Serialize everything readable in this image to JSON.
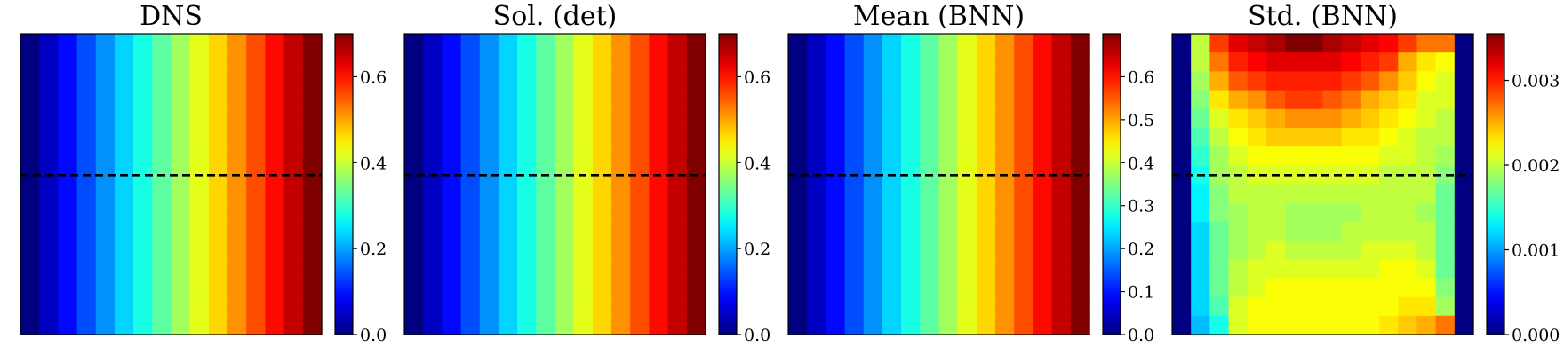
{
  "chart_data": [
    {
      "type": "heatmap",
      "title": "DNS",
      "colormap": "jet",
      "grid": false,
      "colorbar": {
        "range": [
          0.0,
          0.7
        ],
        "ticks": [
          0.0,
          0.2,
          0.4,
          0.6
        ],
        "tick_labels": [
          "0.0",
          "0.2",
          "0.4",
          "0.6"
        ]
      },
      "reference_line": {
        "axis": "y",
        "value": 0.53,
        "style": "dashed",
        "color": "#000000"
      },
      "pattern": {
        "kind": "linear_x",
        "cols": 16,
        "rows": 16,
        "start": 0.0,
        "end": 0.7
      }
    },
    {
      "type": "heatmap",
      "title": "Sol. (det)",
      "colormap": "jet",
      "grid": false,
      "colorbar": {
        "range": [
          0.0,
          0.7
        ],
        "ticks": [
          0.0,
          0.2,
          0.4,
          0.6
        ],
        "tick_labels": [
          "0.0",
          "0.2",
          "0.4",
          "0.6"
        ]
      },
      "reference_line": {
        "axis": "y",
        "value": 0.53,
        "style": "dashed",
        "color": "#000000"
      },
      "pattern": {
        "kind": "linear_x",
        "cols": 16,
        "rows": 16,
        "start": 0.0,
        "end": 0.7
      }
    },
    {
      "type": "heatmap",
      "title": "Mean (BNN)",
      "colormap": "jet",
      "grid": false,
      "colorbar": {
        "range": [
          0.0,
          0.7
        ],
        "ticks": [
          0.0,
          0.1,
          0.2,
          0.3,
          0.4,
          0.5,
          0.6
        ],
        "tick_labels": [
          "0.0",
          "0.1",
          "0.2",
          "0.3",
          "0.4",
          "0.5",
          "0.6"
        ]
      },
      "reference_line": {
        "axis": "y",
        "value": 0.53,
        "style": "dashed",
        "color": "#000000"
      },
      "pattern": {
        "kind": "linear_x",
        "cols": 16,
        "rows": 16,
        "start": 0.0,
        "end": 0.7
      }
    },
    {
      "type": "heatmap",
      "title": "Std. (BNN)",
      "colormap": "jet",
      "grid": false,
      "colorbar": {
        "range": [
          0.0,
          0.00355
        ],
        "ticks": [
          0.0,
          0.001,
          0.002,
          0.003
        ],
        "tick_labels": [
          "0.000",
          "0.001",
          "0.002",
          "0.003"
        ]
      },
      "reference_line": {
        "axis": "y",
        "value": 0.53,
        "style": "dashed",
        "color": "#000000"
      },
      "row_order": "top_to_bottom",
      "values": [
        [
          0.0,
          0.002,
          0.0029,
          0.0032,
          0.0033,
          0.0034,
          0.00355,
          0.00355,
          0.0034,
          0.0033,
          0.0032,
          0.0031,
          0.0029,
          0.0027,
          0.0027,
          0.0
        ],
        [
          0.0,
          0.002,
          0.0027,
          0.003,
          0.0031,
          0.0032,
          0.0032,
          0.0032,
          0.0032,
          0.0031,
          0.003,
          0.0029,
          0.0025,
          0.0023,
          0.0022,
          0.0
        ],
        [
          0.0,
          0.0019,
          0.0025,
          0.0028,
          0.0029,
          0.003,
          0.003,
          0.003,
          0.003,
          0.0029,
          0.0028,
          0.0026,
          0.0024,
          0.0022,
          0.0021,
          0.0
        ],
        [
          0.0,
          0.0018,
          0.0023,
          0.0025,
          0.0026,
          0.0028,
          0.0029,
          0.0029,
          0.0028,
          0.0027,
          0.0025,
          0.0024,
          0.0023,
          0.0021,
          0.0021,
          0.0
        ],
        [
          0.0,
          0.0017,
          0.0021,
          0.0023,
          0.0024,
          0.0025,
          0.0026,
          0.0026,
          0.0026,
          0.0025,
          0.0024,
          0.0023,
          0.0022,
          0.0021,
          0.002,
          0.0
        ],
        [
          0.0,
          0.0016,
          0.002,
          0.0022,
          0.0023,
          0.0024,
          0.0024,
          0.0024,
          0.0024,
          0.0023,
          0.0023,
          0.0022,
          0.0021,
          0.002,
          0.002,
          0.0
        ],
        [
          0.0,
          0.0015,
          0.0019,
          0.0021,
          0.0022,
          0.0022,
          0.0022,
          0.0022,
          0.0022,
          0.0022,
          0.0022,
          0.0021,
          0.0021,
          0.002,
          0.0019,
          0.0
        ],
        [
          0.0,
          0.0014,
          0.0019,
          0.002,
          0.0021,
          0.0021,
          0.0021,
          0.0021,
          0.0021,
          0.0021,
          0.0021,
          0.002,
          0.002,
          0.002,
          0.0018,
          0.0
        ],
        [
          0.0,
          0.0013,
          0.0018,
          0.002,
          0.002,
          0.002,
          0.002,
          0.002,
          0.002,
          0.002,
          0.002,
          0.002,
          0.002,
          0.002,
          0.0017,
          0.0
        ],
        [
          0.0,
          0.0013,
          0.0018,
          0.0019,
          0.002,
          0.002,
          0.0019,
          0.0019,
          0.0019,
          0.0019,
          0.002,
          0.002,
          0.002,
          0.0019,
          0.0017,
          0.0
        ],
        [
          0.0,
          0.0012,
          0.0017,
          0.0019,
          0.002,
          0.002,
          0.0019,
          0.0019,
          0.0019,
          0.002,
          0.002,
          0.002,
          0.002,
          0.002,
          0.0017,
          0.0
        ],
        [
          0.0,
          0.0012,
          0.0017,
          0.0019,
          0.002,
          0.0021,
          0.002,
          0.002,
          0.002,
          0.002,
          0.0021,
          0.0021,
          0.0021,
          0.002,
          0.0017,
          0.0
        ],
        [
          0.0,
          0.0012,
          0.0017,
          0.002,
          0.0021,
          0.0021,
          0.0021,
          0.0021,
          0.0021,
          0.0021,
          0.0021,
          0.0022,
          0.0022,
          0.0021,
          0.0017,
          0.0
        ],
        [
          0.0,
          0.0012,
          0.0017,
          0.002,
          0.0021,
          0.0022,
          0.0022,
          0.0022,
          0.0022,
          0.0022,
          0.0022,
          0.0022,
          0.0022,
          0.0022,
          0.0018,
          0.0
        ],
        [
          0.0,
          0.0012,
          0.0016,
          0.0021,
          0.0022,
          0.0022,
          0.0022,
          0.0022,
          0.0022,
          0.0022,
          0.0022,
          0.0022,
          0.0023,
          0.0023,
          0.0019,
          0.0
        ],
        [
          0.0,
          0.0011,
          0.0014,
          0.0021,
          0.0022,
          0.0022,
          0.0022,
          0.0022,
          0.0022,
          0.0022,
          0.0022,
          0.0023,
          0.0024,
          0.0025,
          0.0027,
          0.0
        ]
      ]
    }
  ]
}
